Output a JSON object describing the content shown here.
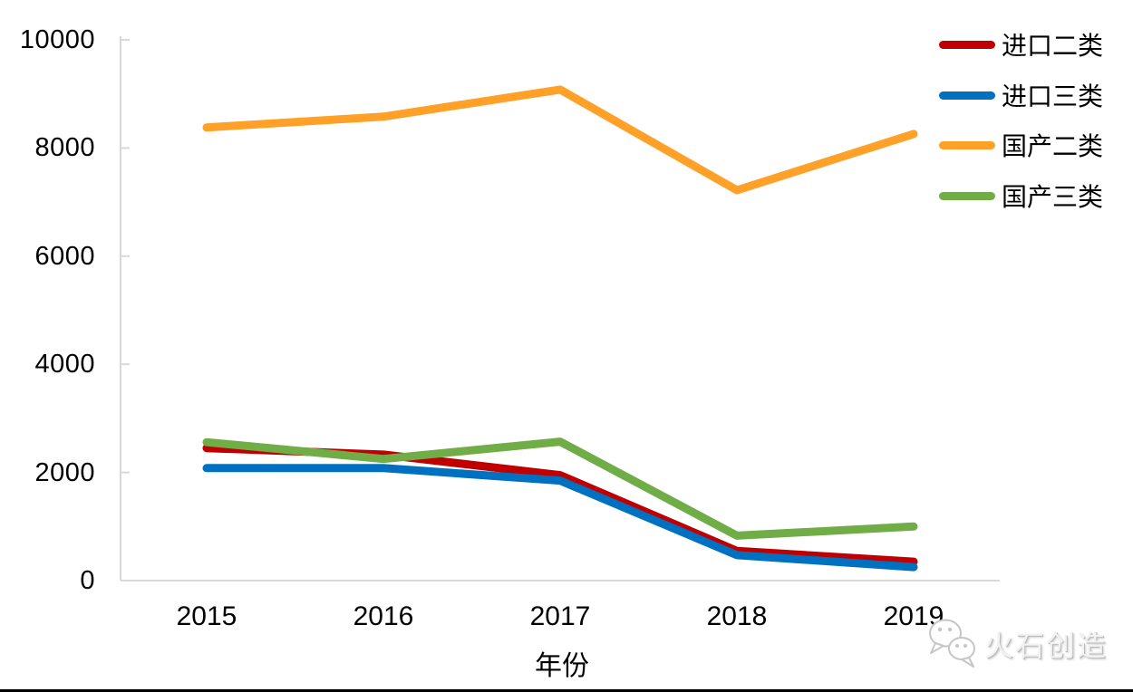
{
  "chart_data": {
    "type": "line",
    "categories": [
      "2015",
      "2016",
      "2017",
      "2018",
      "2019"
    ],
    "series": [
      {
        "name": "进口二类",
        "color": "#C00000",
        "values": [
          2450,
          2330,
          1950,
          550,
          350
        ]
      },
      {
        "name": "进口三类",
        "color": "#0070C0",
        "values": [
          2080,
          2080,
          1850,
          470,
          250
        ]
      },
      {
        "name": "国产二类",
        "color": "#FFA128",
        "values": [
          8380,
          8580,
          9080,
          7220,
          8260
        ]
      },
      {
        "name": "国产三类",
        "color": "#70AD47",
        "values": [
          2560,
          2250,
          2570,
          830,
          1000
        ]
      }
    ],
    "title": "",
    "xlabel": "年份",
    "ylabel": "",
    "ylim": [
      0,
      10000
    ],
    "y_ticks": [
      "0",
      "2000",
      "4000",
      "6000",
      "8000",
      "10000"
    ],
    "grid": false,
    "legend_position": "top-right",
    "axis_color": "#D9D9D9",
    "line_width": 9
  },
  "watermark": {
    "text": "火石创造",
    "icon": "wechat-bubbles-icon"
  }
}
